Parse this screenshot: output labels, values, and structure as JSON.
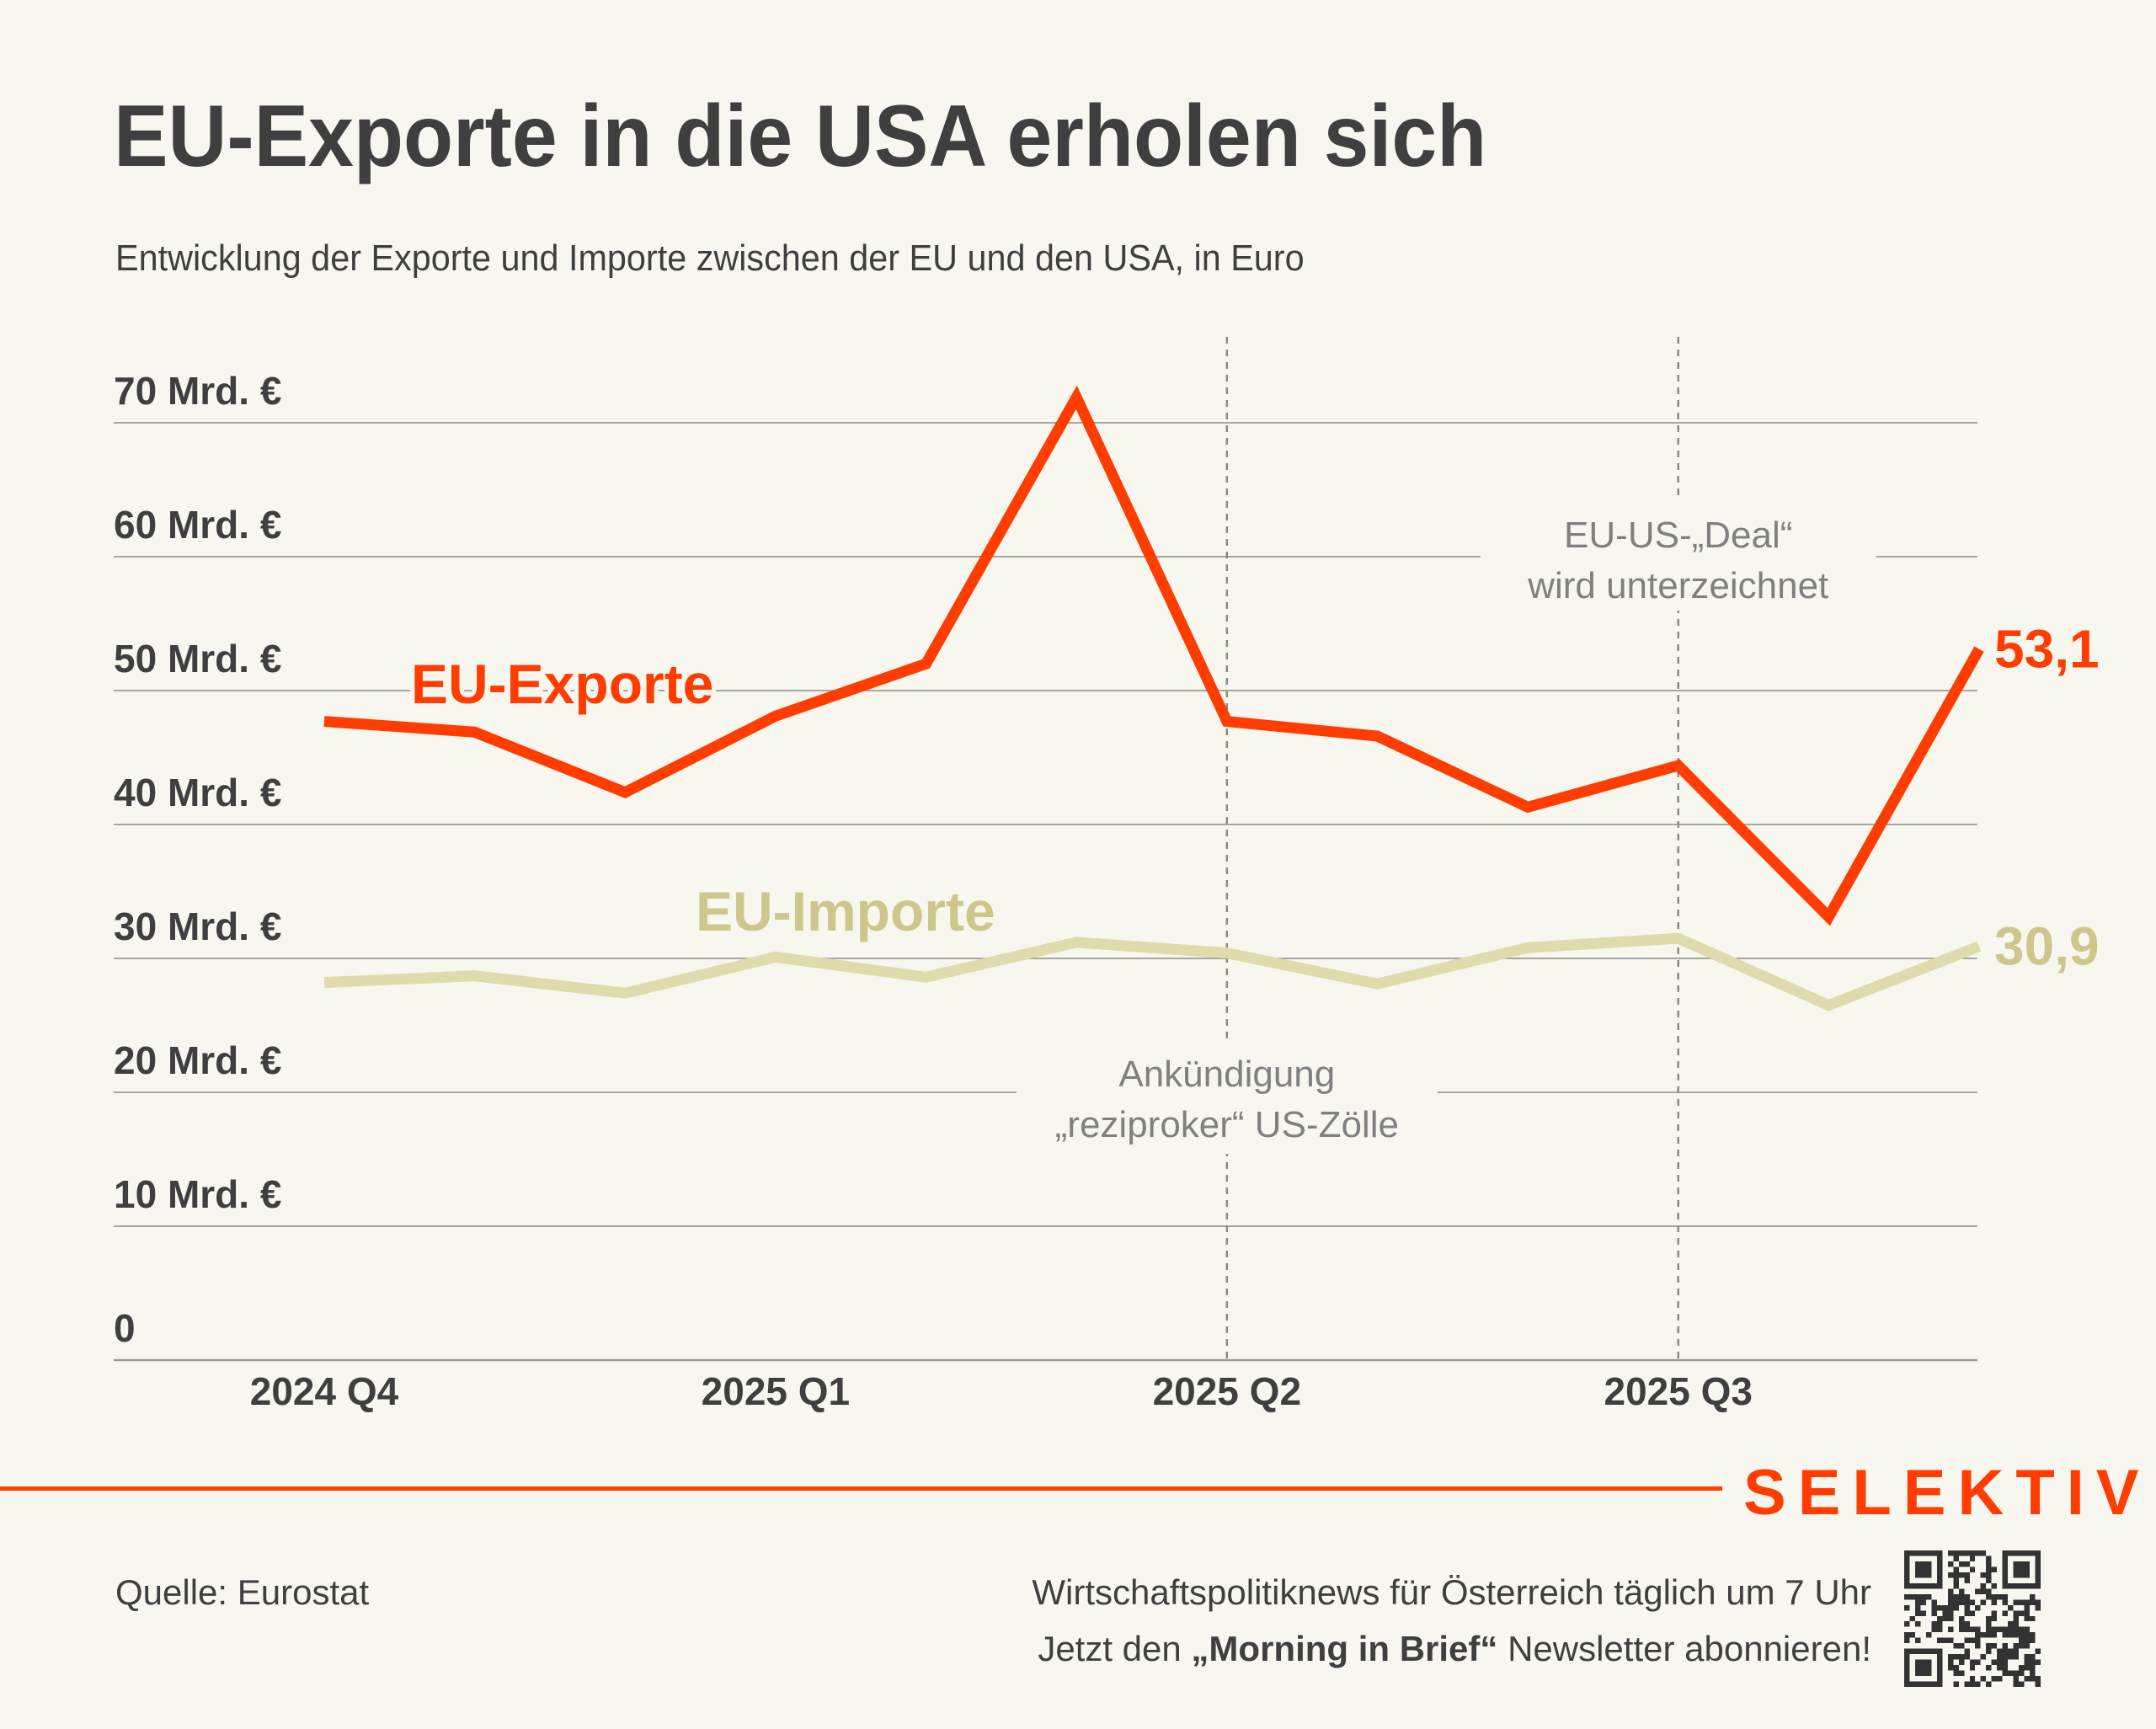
{
  "header": {
    "title": "EU-Exporte in die USA erholen sich",
    "subtitle": "Entwicklung der Exporte und Importe zwischen der EU und den USA, in Euro"
  },
  "chart_data": {
    "type": "line",
    "title": "EU-Exporte in die USA erholen sich",
    "subtitle": "Entwicklung der Exporte und Importe zwischen der EU und den USA, in Euro",
    "xlabel": "",
    "ylabel": "",
    "ylim": [
      0,
      70
    ],
    "grid": true,
    "yticks": [
      0,
      10,
      20,
      30,
      40,
      50,
      60,
      70
    ],
    "ytick_labels": [
      "0",
      "10 Mrd. €",
      "20 Mrd. €",
      "30 Mrd. €",
      "40 Mrd. €",
      "50 Mrd. €",
      "60 Mrd. €",
      "70 Mrd. €"
    ],
    "x": [
      "2024-10",
      "2024-11",
      "2024-12",
      "2025-01",
      "2025-02",
      "2025-03",
      "2025-04",
      "2025-05",
      "2025-06",
      "2025-07",
      "2025-08",
      "2025-09"
    ],
    "xticks": [
      {
        "index": 0,
        "label": "2024 Q4"
      },
      {
        "index": 3,
        "label": "2025 Q1"
      },
      {
        "index": 6,
        "label": "2025 Q2"
      },
      {
        "index": 9,
        "label": "2025 Q3"
      }
    ],
    "series": [
      {
        "name": "EU-Exporte",
        "color": "#ff3d00",
        "values": [
          47.7,
          46.9,
          42.4,
          48.1,
          52.0,
          71.9,
          47.7,
          46.6,
          41.3,
          44.4,
          33.1,
          53.1
        ],
        "end_label": "53,1"
      },
      {
        "name": "EU-Importe",
        "color": "#e0dbac",
        "label_color": "#cdc78b",
        "values": [
          28.2,
          28.7,
          27.4,
          30.1,
          28.6,
          31.2,
          30.4,
          28.1,
          30.8,
          31.5,
          26.5,
          30.9
        ],
        "end_label": "30,9"
      }
    ],
    "annotations": [
      {
        "index": 6,
        "lines": [
          "Ankündigung",
          "„reziproker“ US-Zölle"
        ],
        "position": "below"
      },
      {
        "index": 9,
        "lines": [
          "EU-US-„Deal“",
          "wird unterzeichnet"
        ],
        "position": "above"
      }
    ],
    "legend": "inline"
  },
  "footer": {
    "brand": "SELEKTIV",
    "source": "Quelle: Eurostat",
    "promo_line1": "Wirtschaftspolitiknews für Österreich täglich um 7 Uhr",
    "promo_line2_prefix": "Jetzt den ",
    "promo_line2_bold": "„Morning in Brief“",
    "promo_line2_suffix": " Newsletter abonnieren!",
    "qr_icon": "qr-code-icon"
  },
  "colors": {
    "background": "#f8f7ef",
    "accent": "#ff3d00",
    "imports": "#e0dbac",
    "text": "#3f3f3f",
    "annotation": "#808080",
    "grid": "#9a9a95"
  }
}
